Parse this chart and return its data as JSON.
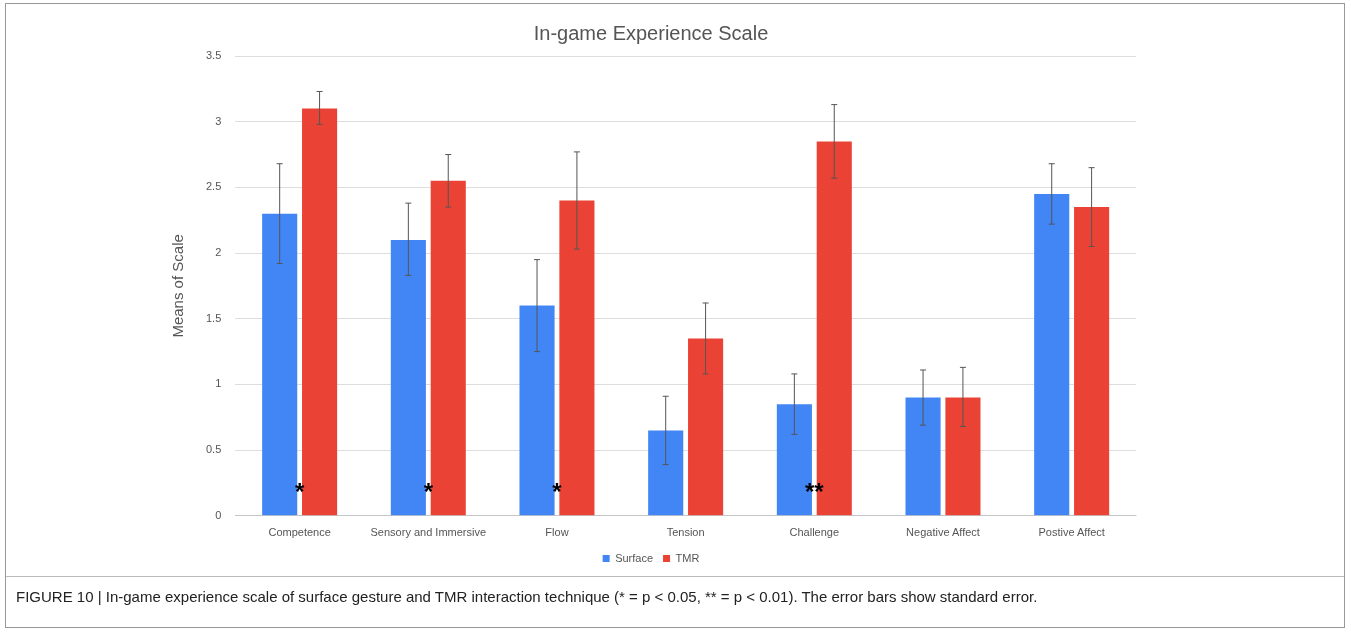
{
  "chart_data": {
    "type": "bar",
    "title": "In-game Experience Scale",
    "ylabel": "Means of Scale",
    "categories": [
      "Competence",
      "Sensory and Immersive",
      "Flow",
      "Tension",
      "Challenge",
      "Negative Affect",
      "Postive Affect"
    ],
    "series": [
      {
        "name": "Surface",
        "color": "#4285f4",
        "values": [
          2.3,
          2.1,
          1.6,
          0.65,
          0.85,
          0.9,
          2.45
        ],
        "errors": [
          [
            1.92,
            2.68
          ],
          [
            1.83,
            2.38
          ],
          [
            1.25,
            1.95
          ],
          [
            0.39,
            0.91
          ],
          [
            0.62,
            1.08
          ],
          [
            0.69,
            1.11
          ],
          [
            2.22,
            2.68
          ]
        ]
      },
      {
        "name": "TMR",
        "color": "#ea4335",
        "values": [
          3.1,
          2.55,
          2.4,
          1.35,
          2.85,
          0.9,
          2.35
        ],
        "errors": [
          [
            2.98,
            3.23
          ],
          [
            2.35,
            2.75
          ],
          [
            2.03,
            2.77
          ],
          [
            1.08,
            1.62
          ],
          [
            2.57,
            3.13
          ],
          [
            0.68,
            1.13
          ],
          [
            2.05,
            2.65
          ]
        ]
      }
    ],
    "ylim": [
      0,
      3.5
    ],
    "yticks": [
      0,
      0.5,
      1,
      1.5,
      2,
      2.5,
      3,
      3.5
    ],
    "grid": "y",
    "legend": "bottom",
    "annotations": [
      {
        "text": "**",
        "x": "Challenge",
        "y": 0.2
      },
      {
        "text": "*",
        "x": "Competence",
        "y": 0.2
      },
      {
        "text": "*",
        "x": "Sensory and Immersive",
        "y": 0.2
      },
      {
        "text": "*",
        "x": "Flow",
        "y": 0.2
      },
      "FIGURE 10 | In-game experience scale of surface gesture and TMR interaction technique (* = p  < 0.05, ** = p  < 0.01). The error bars show standard error."
    ]
  }
}
